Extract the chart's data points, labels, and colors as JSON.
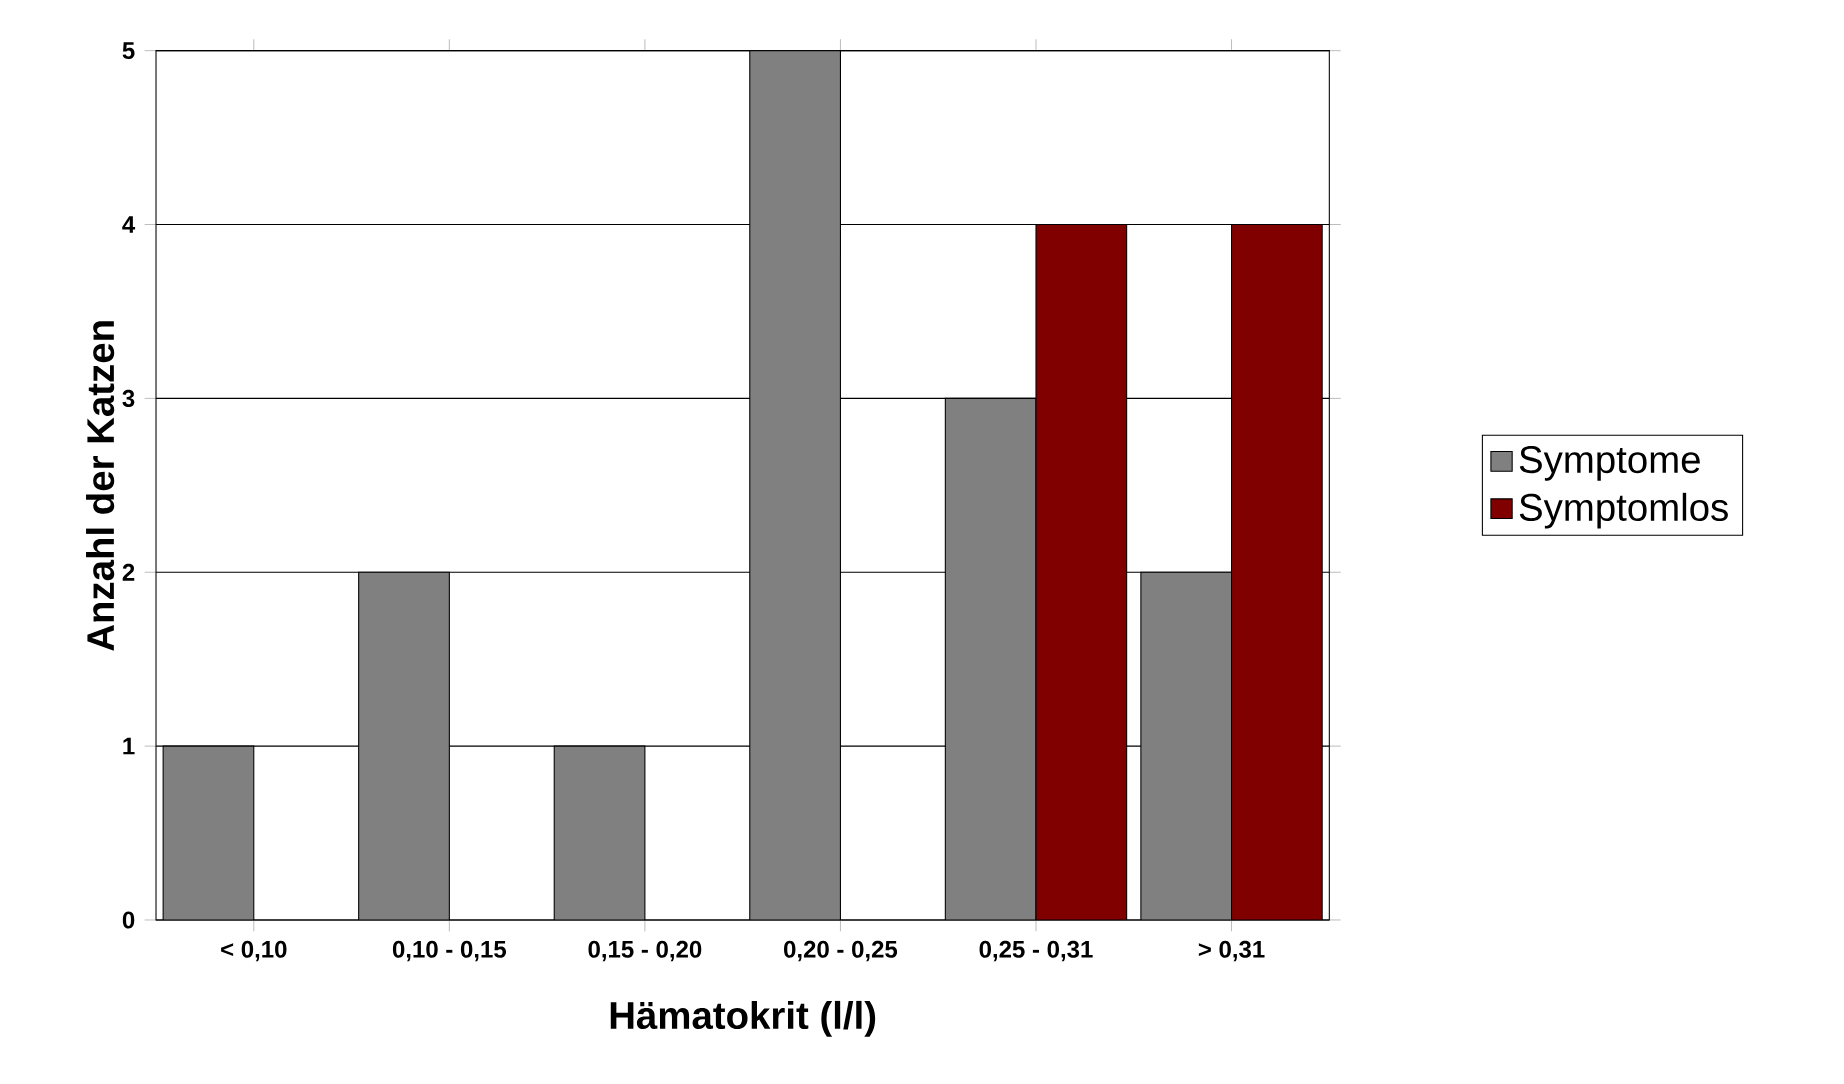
{
  "chart_data": {
    "type": "bar",
    "xlabel": "Hämatokrit (l/l)",
    "ylabel": "Anzahl der Katzen",
    "categories": [
      "< 0,10",
      "0,10 - 0,15",
      "0,15 - 0,20",
      "0,20 - 0,25",
      "0,25 - 0,31",
      "> 0,31"
    ],
    "series": [
      {
        "name": "Symptome",
        "color": "#808080",
        "values": [
          1,
          2,
          1,
          5,
          3,
          2
        ]
      },
      {
        "name": "Symptomlos",
        "color": "#800000",
        "values": [
          null,
          null,
          null,
          null,
          4,
          4
        ]
      }
    ],
    "ylim": [
      0,
      5
    ],
    "yticks": [
      0,
      1,
      2,
      3,
      4,
      5
    ],
    "grid": "y",
    "legend": "right"
  }
}
